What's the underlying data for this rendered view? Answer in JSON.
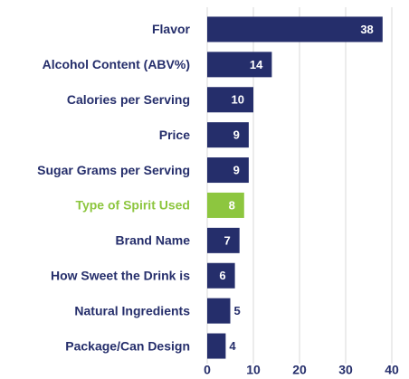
{
  "chart_data": {
    "type": "bar",
    "orientation": "horizontal",
    "categories": [
      "Flavor",
      "Alcohol Content (ABV%)",
      "Calories per Serving",
      "Price",
      "Sugar Grams per Serving",
      "Type of Spirit Used",
      "Brand Name",
      "How Sweet the Drink is",
      "Natural Ingredients",
      "Package/Can Design"
    ],
    "values": [
      38,
      14,
      10,
      9,
      9,
      8,
      7,
      6,
      5,
      4
    ],
    "colors": [
      "#252e6b",
      "#252e6b",
      "#252e6b",
      "#252e6b",
      "#252e6b",
      "#8dc63f",
      "#252e6b",
      "#252e6b",
      "#252e6b",
      "#252e6b"
    ],
    "xlim": [
      0,
      40
    ],
    "xticks": [
      0,
      10,
      20,
      30,
      40
    ],
    "grid": true
  }
}
